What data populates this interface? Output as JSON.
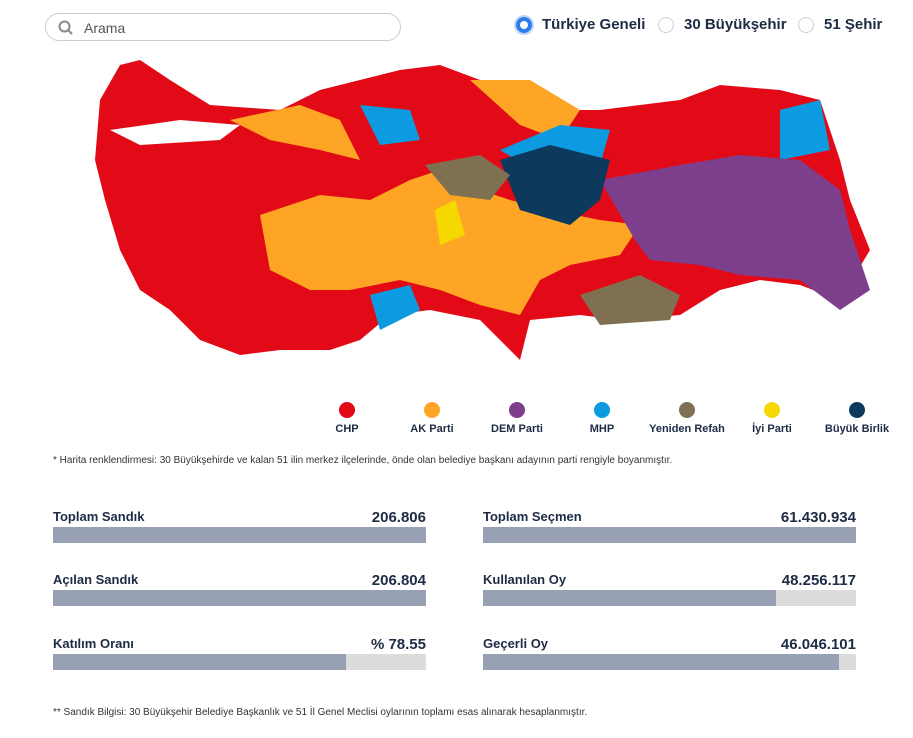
{
  "search": {
    "placeholder": "Arama"
  },
  "scope": {
    "options": [
      "Türkiye Geneli",
      "30 Büyükşehir",
      "51 Şehir"
    ],
    "selected": 0
  },
  "legend": [
    {
      "name": "CHP",
      "color": "#e30a17"
    },
    {
      "name": "AK Parti",
      "color": "#ffa526"
    },
    {
      "name": "DEM Parti",
      "color": "#7d3f8c"
    },
    {
      "name": "MHP",
      "color": "#0c9be0"
    },
    {
      "name": "Yeniden Refah",
      "color": "#7f7052"
    },
    {
      "name": "İyi Parti",
      "color": "#f5d800"
    },
    {
      "name": "Büyük Birlik",
      "color": "#0d3a5c"
    }
  ],
  "map_note": "* Harita renklendirmesi: 30 Büyükşehirde ve kalan 51 ilin merkez ilçelerinde, önde olan belediye başkanı adayının parti rengiyle boyanmıştır.",
  "stats": [
    [
      {
        "label": "Toplam Sandık",
        "value": 206806,
        "display": "206.806"
      },
      {
        "label": "Açılan Sandık",
        "value": 206804,
        "display": "206.804"
      },
      {
        "label": "Katılım Oranı",
        "value": 78.55,
        "display": "% 78.55",
        "percent": true
      }
    ],
    [
      {
        "label": "Toplam Seçmen",
        "value": 61430934,
        "display": "61.430.934"
      },
      {
        "label": "Kullanılan Oy",
        "value": 48256117,
        "display": "48.256.117"
      },
      {
        "label": "Geçerli Oy",
        "value": 46046101,
        "display": "46.046.101"
      }
    ]
  ],
  "stats_note": "** Sandık Bilgisi: 30 Büyükşehir Belediye Başkanlık ve 51 İl Genel Meclisi oylarının toplamı esas alınarak hesaplanmıştır."
}
